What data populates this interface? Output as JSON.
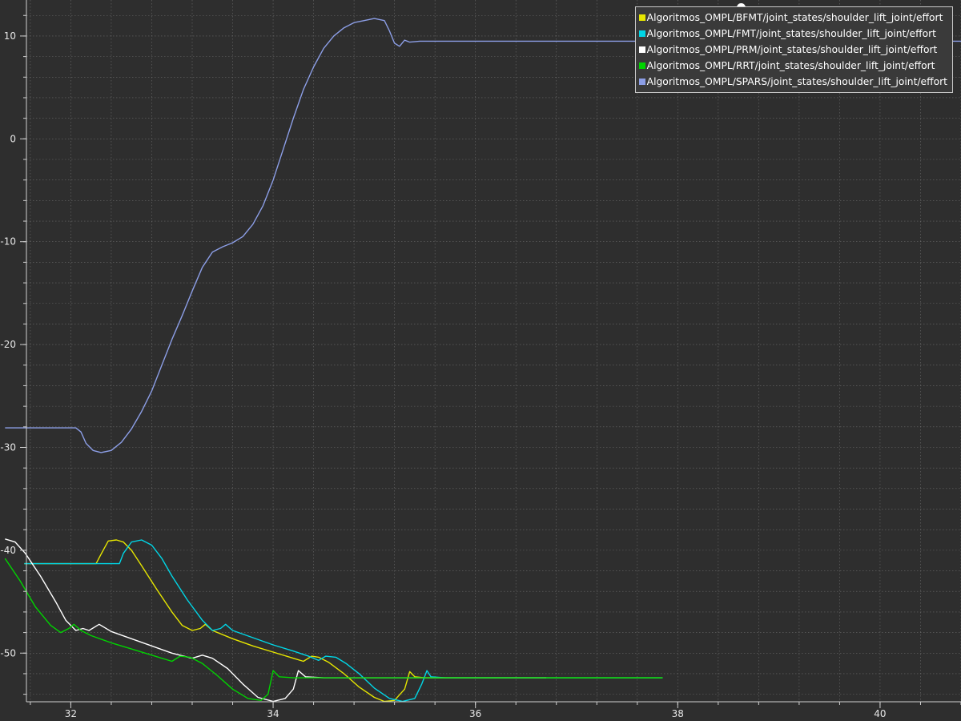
{
  "chart_data": {
    "type": "line",
    "title": "",
    "xlabel": "",
    "ylabel": "",
    "xlim": [
      31.3,
      40.8
    ],
    "ylim": [
      -56.6,
      13.5
    ],
    "x_ticks": [
      32,
      34,
      36,
      38,
      40
    ],
    "y_ticks": [
      10,
      0,
      -10,
      -20,
      -30,
      -40,
      -50
    ],
    "grid": true,
    "legend_position": "top-right",
    "series": [
      {
        "name": "Algoritmos_OMPL/BFMT/joint_states/shoulder_lift_joint/effort",
        "color": "#e6e600",
        "points": [
          [
            31.54,
            -41.3
          ],
          [
            32.25,
            -41.3
          ],
          [
            32.32,
            -40.0
          ],
          [
            32.37,
            -39.1
          ],
          [
            32.45,
            -39.0
          ],
          [
            32.52,
            -39.2
          ],
          [
            32.6,
            -40.0
          ],
          [
            32.7,
            -41.5
          ],
          [
            32.85,
            -43.8
          ],
          [
            33.0,
            -46.0
          ],
          [
            33.1,
            -47.3
          ],
          [
            33.2,
            -47.8
          ],
          [
            33.28,
            -47.6
          ],
          [
            33.33,
            -47.2
          ],
          [
            33.4,
            -47.8
          ],
          [
            33.6,
            -48.6
          ],
          [
            33.8,
            -49.3
          ],
          [
            34.0,
            -49.9
          ],
          [
            34.2,
            -50.5
          ],
          [
            34.3,
            -50.8
          ],
          [
            34.38,
            -50.3
          ],
          [
            34.45,
            -50.4
          ],
          [
            34.55,
            -50.9
          ],
          [
            34.7,
            -52.0
          ],
          [
            34.85,
            -53.3
          ],
          [
            35.0,
            -54.3
          ],
          [
            35.1,
            -54.7
          ],
          [
            35.2,
            -54.6
          ],
          [
            35.3,
            -53.5
          ],
          [
            35.35,
            -51.8
          ],
          [
            35.4,
            -52.3
          ],
          [
            35.5,
            -52.4
          ],
          [
            37.85,
            -52.4
          ]
        ]
      },
      {
        "name": "Algoritmos_OMPL/FMT/joint_states/shoulder_lift_joint/effort",
        "color": "#00d6e6",
        "points": [
          [
            31.54,
            -41.3
          ],
          [
            32.48,
            -41.3
          ],
          [
            32.52,
            -40.3
          ],
          [
            32.6,
            -39.2
          ],
          [
            32.7,
            -39.0
          ],
          [
            32.8,
            -39.5
          ],
          [
            32.9,
            -40.8
          ],
          [
            33.0,
            -42.5
          ],
          [
            33.15,
            -44.8
          ],
          [
            33.3,
            -46.8
          ],
          [
            33.4,
            -47.8
          ],
          [
            33.48,
            -47.6
          ],
          [
            33.53,
            -47.2
          ],
          [
            33.6,
            -47.8
          ],
          [
            33.8,
            -48.5
          ],
          [
            34.0,
            -49.2
          ],
          [
            34.2,
            -49.8
          ],
          [
            34.35,
            -50.3
          ],
          [
            34.45,
            -50.7
          ],
          [
            34.52,
            -50.3
          ],
          [
            34.62,
            -50.4
          ],
          [
            34.72,
            -51.0
          ],
          [
            34.85,
            -52.0
          ],
          [
            35.0,
            -53.4
          ],
          [
            35.15,
            -54.4
          ],
          [
            35.28,
            -54.7
          ],
          [
            35.4,
            -54.4
          ],
          [
            35.47,
            -53.0
          ],
          [
            35.52,
            -51.7
          ],
          [
            35.56,
            -52.3
          ],
          [
            35.7,
            -52.4
          ],
          [
            37.85,
            -52.4
          ]
        ]
      },
      {
        "name": "Algoritmos_OMPL/PRM/joint_states/shoulder_lift_joint/effort",
        "color": "#ffffff",
        "points": [
          [
            31.35,
            -38.9
          ],
          [
            31.45,
            -39.2
          ],
          [
            31.55,
            -40.3
          ],
          [
            31.7,
            -42.5
          ],
          [
            31.85,
            -45.0
          ],
          [
            31.95,
            -46.8
          ],
          [
            32.05,
            -47.8
          ],
          [
            32.12,
            -47.6
          ],
          [
            32.18,
            -47.8
          ],
          [
            32.28,
            -47.2
          ],
          [
            32.4,
            -47.9
          ],
          [
            32.6,
            -48.6
          ],
          [
            32.8,
            -49.3
          ],
          [
            33.0,
            -50.0
          ],
          [
            33.2,
            -50.5
          ],
          [
            33.3,
            -50.2
          ],
          [
            33.4,
            -50.5
          ],
          [
            33.55,
            -51.5
          ],
          [
            33.7,
            -53.0
          ],
          [
            33.85,
            -54.3
          ],
          [
            34.0,
            -54.7
          ],
          [
            34.12,
            -54.4
          ],
          [
            34.2,
            -53.5
          ],
          [
            34.25,
            -51.7
          ],
          [
            34.32,
            -52.3
          ],
          [
            34.5,
            -52.4
          ],
          [
            36.7,
            -52.4
          ]
        ]
      },
      {
        "name": "Algoritmos_OMPL/RRT/joint_states/shoulder_lift_joint/effort",
        "color": "#00d400",
        "points": [
          [
            31.35,
            -40.8
          ],
          [
            31.5,
            -43.0
          ],
          [
            31.65,
            -45.5
          ],
          [
            31.8,
            -47.3
          ],
          [
            31.9,
            -48.0
          ],
          [
            31.98,
            -47.6
          ],
          [
            32.03,
            -47.2
          ],
          [
            32.1,
            -47.8
          ],
          [
            32.2,
            -48.3
          ],
          [
            32.4,
            -49.0
          ],
          [
            32.6,
            -49.6
          ],
          [
            32.8,
            -50.2
          ],
          [
            33.0,
            -50.8
          ],
          [
            33.08,
            -50.3
          ],
          [
            33.18,
            -50.4
          ],
          [
            33.3,
            -51.0
          ],
          [
            33.45,
            -52.2
          ],
          [
            33.6,
            -53.5
          ],
          [
            33.75,
            -54.4
          ],
          [
            33.88,
            -54.6
          ],
          [
            33.95,
            -54.0
          ],
          [
            34.0,
            -51.7
          ],
          [
            34.06,
            -52.3
          ],
          [
            34.2,
            -52.4
          ],
          [
            37.85,
            -52.4
          ]
        ]
      },
      {
        "name": "Algoritmos_OMPL/SPARS/joint_states/shoulder_lift_joint/effort",
        "color": "#8c9ee6",
        "points": [
          [
            31.35,
            -28.1
          ],
          [
            32.05,
            -28.1
          ],
          [
            32.1,
            -28.5
          ],
          [
            32.15,
            -29.6
          ],
          [
            32.22,
            -30.3
          ],
          [
            32.3,
            -30.5
          ],
          [
            32.4,
            -30.3
          ],
          [
            32.5,
            -29.5
          ],
          [
            32.6,
            -28.2
          ],
          [
            32.7,
            -26.5
          ],
          [
            32.8,
            -24.5
          ],
          [
            32.9,
            -22.0
          ],
          [
            33.0,
            -19.5
          ],
          [
            33.1,
            -17.2
          ],
          [
            33.2,
            -14.8
          ],
          [
            33.3,
            -12.5
          ],
          [
            33.4,
            -11.0
          ],
          [
            33.5,
            -10.5
          ],
          [
            33.6,
            -10.1
          ],
          [
            33.7,
            -9.5
          ],
          [
            33.8,
            -8.3
          ],
          [
            33.9,
            -6.5
          ],
          [
            34.0,
            -4.0
          ],
          [
            34.1,
            -1.0
          ],
          [
            34.2,
            2.0
          ],
          [
            34.3,
            4.8
          ],
          [
            34.4,
            7.0
          ],
          [
            34.5,
            8.8
          ],
          [
            34.6,
            10.0
          ],
          [
            34.7,
            10.8
          ],
          [
            34.8,
            11.3
          ],
          [
            34.9,
            11.5
          ],
          [
            35.0,
            11.7
          ],
          [
            35.1,
            11.5
          ],
          [
            35.15,
            10.5
          ],
          [
            35.2,
            9.3
          ],
          [
            35.25,
            9.0
          ],
          [
            35.3,
            9.6
          ],
          [
            35.35,
            9.4
          ],
          [
            35.45,
            9.5
          ],
          [
            40.8,
            9.5
          ]
        ]
      }
    ]
  },
  "legend": {
    "items": [
      "Algoritmos_OMPL/BFMT/joint_states/shoulder_lift_joint/effort",
      "Algoritmos_OMPL/FMT/joint_states/shoulder_lift_joint/effort",
      "Algoritmos_OMPL/PRM/joint_states/shoulder_lift_joint/effort",
      "Algoritmos_OMPL/RRT/joint_states/shoulder_lift_joint/effort",
      "Algoritmos_OMPL/SPARS/joint_states/shoulder_lift_joint/effort"
    ]
  },
  "colors": {
    "background": "#2e2e2e",
    "grid": "#7a7a7a",
    "axis": "#d0d0d0"
  }
}
